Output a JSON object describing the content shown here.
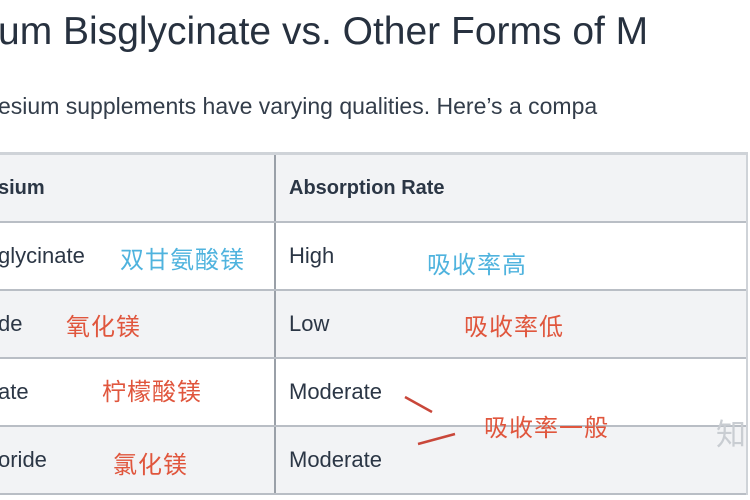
{
  "title": "um Bisglycinate vs. Other Forms of M",
  "subtitle": "esium supplements have varying qualities. Here’s a compa",
  "table": {
    "headers": [
      "sium",
      "Absorption Rate"
    ],
    "rows": [
      {
        "form": "glycinate",
        "absorption": "High",
        "form_note": "双甘氨酸镁",
        "absorption_note": "吸收率高",
        "note_color": "#4fb3de"
      },
      {
        "form": "de",
        "absorption": "Low",
        "form_note": "氧化镁",
        "absorption_note": "吸收率低",
        "note_color": "#e0563d"
      },
      {
        "form": "ate",
        "absorption": "Moderate",
        "form_note": "柠檬酸镁",
        "note_color": "#e0563d"
      },
      {
        "form": "oride",
        "absorption": "Moderate",
        "form_note": "氯化镁",
        "note_color": "#e0563d"
      }
    ],
    "shared_note": "吸收率一般"
  },
  "watermark": "知"
}
